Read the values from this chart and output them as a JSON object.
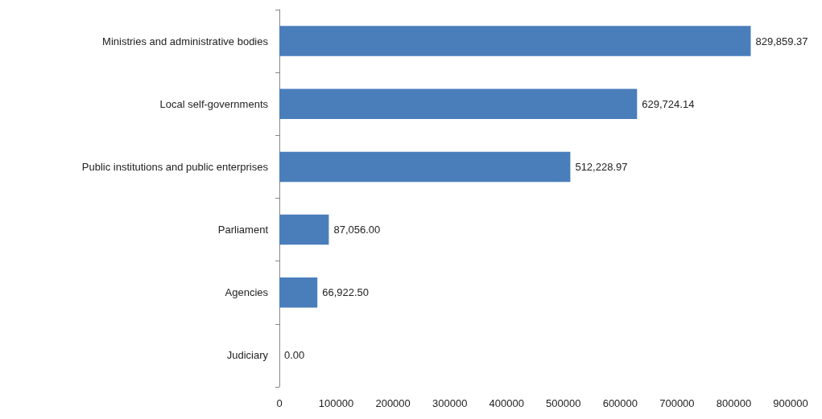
{
  "chart_data": {
    "type": "bar",
    "orientation": "horizontal",
    "categories": [
      "Ministries and administrative bodies",
      "Local self-governments",
      "Public institutions and public enterprises",
      "Parliament",
      "Agencies",
      "Judiciary"
    ],
    "values": [
      829859.37,
      629724.14,
      512228.97,
      87056.0,
      66922.5,
      0.0
    ],
    "value_labels": [
      "829,859.37",
      "629,724.14",
      "512,228.97",
      "87,056.00",
      "66,922.50",
      "0.00"
    ],
    "color": "#4a7ebb",
    "xlim": [
      0,
      900000
    ],
    "xticks": [
      0,
      100000,
      200000,
      300000,
      400000,
      500000,
      600000,
      700000,
      800000,
      900000
    ],
    "grid": false
  }
}
